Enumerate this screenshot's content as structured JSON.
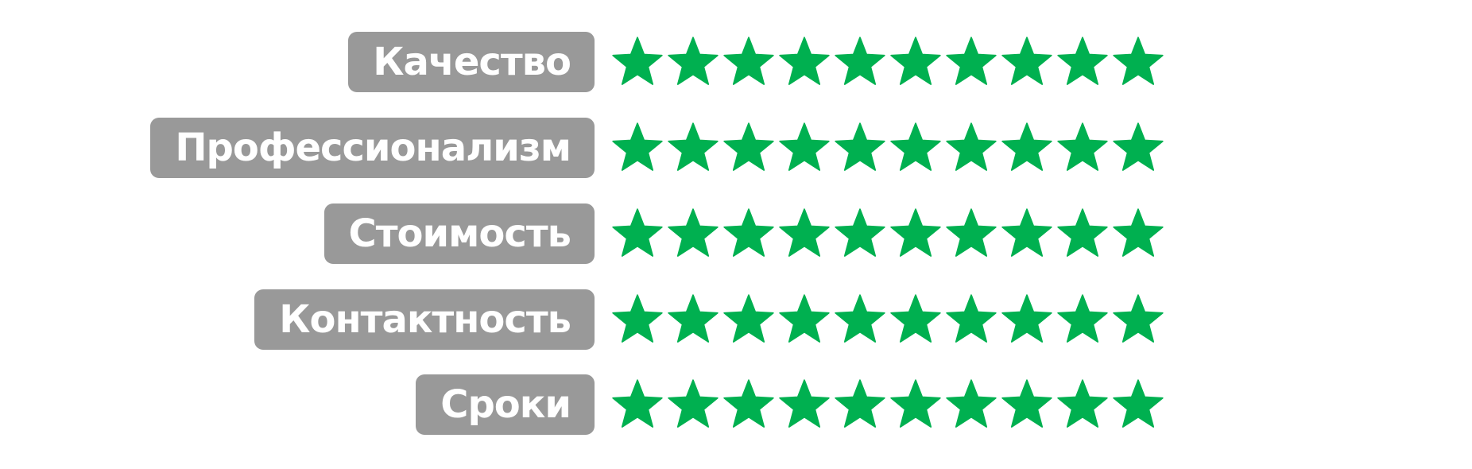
{
  "rating": {
    "max_stars": 10,
    "star_color": "#00b050",
    "label_background": "#999999",
    "label_text_color": "#ffffff",
    "rows": [
      {
        "label": "Качество",
        "stars": 10
      },
      {
        "label": "Профессионализм",
        "stars": 10
      },
      {
        "label": "Стоимость",
        "stars": 10
      },
      {
        "label": "Контактность",
        "stars": 10
      },
      {
        "label": "Сроки",
        "stars": 10
      }
    ]
  }
}
